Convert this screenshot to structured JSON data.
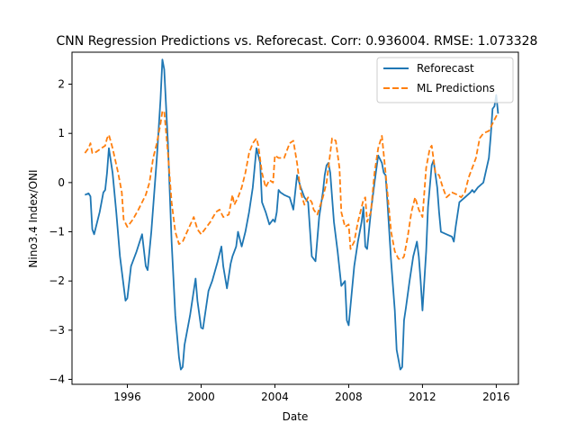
{
  "chart_data": {
    "type": "line",
    "title": "CNN Regression Predictions vs. Reforecast. Corr: 0.936004. RMSE: 1.073328",
    "xlabel": "Date",
    "ylabel": "Nino3.4 Index/ONI",
    "xlim": [
      1993.0,
      2017.2
    ],
    "ylim": [
      -4.1,
      2.65
    ],
    "x_ticks": [
      1996,
      2000,
      2004,
      2008,
      2012,
      2016
    ],
    "x_tick_labels": [
      "1996",
      "2000",
      "2004",
      "2008",
      "2012",
      "2016"
    ],
    "y_ticks": [
      -4,
      -3,
      -2,
      -1,
      0,
      1,
      2
    ],
    "y_tick_labels": [
      "−4",
      "−3",
      "−2",
      "−1",
      "0",
      "1",
      "2"
    ],
    "grid": false,
    "legend_position": "top-right",
    "series": [
      {
        "name": "Reforecast",
        "color": "#1f77b4",
        "dash": "solid",
        "x": [
          1993.7,
          1993.9,
          1994.0,
          1994.1,
          1994.2,
          1994.5,
          1994.7,
          1994.8,
          1994.9,
          1995.0,
          1995.2,
          1995.4,
          1995.6,
          1995.8,
          1995.9,
          1996.0,
          1996.2,
          1996.5,
          1996.8,
          1997.0,
          1997.1,
          1997.3,
          1997.6,
          1997.8,
          1997.9,
          1998.0,
          1998.2,
          1998.4,
          1998.6,
          1998.8,
          1998.9,
          1999.0,
          1999.1,
          1999.2,
          1999.4,
          1999.6,
          1999.7,
          1999.8,
          2000.0,
          2000.1,
          2000.4,
          2000.6,
          2000.9,
          2001.0,
          2001.1,
          2001.2,
          2001.4,
          2001.6,
          2001.7,
          2001.8,
          2001.9,
          2002.0,
          2002.2,
          2002.4,
          2002.6,
          2002.8,
          2002.9,
          2003.0,
          2003.2,
          2003.3,
          2003.5,
          2003.7,
          2003.9,
          2004.0,
          2004.1,
          2004.2,
          2004.3,
          2004.5,
          2004.8,
          2005.0,
          2005.2,
          2005.4,
          2005.6,
          2005.8,
          2006.0,
          2006.2,
          2006.4,
          2006.6,
          2006.7,
          2006.8,
          2006.9,
          2007.0,
          2007.1,
          2007.2,
          2007.4,
          2007.6,
          2007.8,
          2007.9,
          2008.0,
          2008.1,
          2008.3,
          2008.5,
          2008.7,
          2008.8,
          2008.9,
          2009.0,
          2009.2,
          2009.4,
          2009.6,
          2009.8,
          2009.9,
          2010.0,
          2010.1,
          2010.3,
          2010.5,
          2010.6,
          2010.8,
          2010.9,
          2011.0,
          2011.1,
          2011.3,
          2011.5,
          2011.7,
          2011.8,
          2011.9,
          2012.0,
          2012.2,
          2012.3,
          2012.5,
          2012.6,
          2012.8,
          2012.9,
          2013.0,
          2013.3,
          2013.6,
          2013.7,
          2013.8,
          2014.0,
          2014.3,
          2014.6,
          2014.7,
          2014.8,
          2015.0,
          2015.3,
          2015.6,
          2015.7,
          2015.8,
          2015.9,
          2016.0,
          2016.1
        ],
        "y": [
          -0.25,
          -0.22,
          -0.28,
          -0.95,
          -1.05,
          -0.6,
          -0.2,
          -0.15,
          0.2,
          0.7,
          0.2,
          -0.6,
          -1.5,
          -2.1,
          -2.4,
          -2.35,
          -1.7,
          -1.4,
          -1.05,
          -1.7,
          -1.78,
          -1.0,
          0.5,
          1.7,
          2.5,
          2.3,
          0.8,
          -1.2,
          -2.7,
          -3.55,
          -3.8,
          -3.75,
          -3.3,
          -3.1,
          -2.7,
          -2.2,
          -1.95,
          -2.4,
          -2.95,
          -2.97,
          -2.2,
          -2.0,
          -1.6,
          -1.45,
          -1.3,
          -1.7,
          -2.15,
          -1.65,
          -1.5,
          -1.4,
          -1.3,
          -1.0,
          -1.3,
          -1.0,
          -0.6,
          -0.1,
          0.3,
          0.7,
          0.4,
          -0.4,
          -0.6,
          -0.85,
          -0.75,
          -0.8,
          -0.6,
          -0.15,
          -0.2,
          -0.25,
          -0.3,
          -0.55,
          0.15,
          -0.1,
          -0.3,
          -0.4,
          -1.5,
          -1.6,
          -0.7,
          -0.2,
          0.15,
          0.35,
          0.4,
          0.2,
          -0.3,
          -0.8,
          -1.4,
          -2.1,
          -2.0,
          -2.8,
          -2.9,
          -2.5,
          -1.7,
          -1.2,
          -0.8,
          -0.5,
          -1.3,
          -1.35,
          -0.6,
          0.0,
          0.55,
          0.4,
          0.2,
          0.15,
          -0.4,
          -1.6,
          -2.6,
          -3.4,
          -3.8,
          -3.75,
          -2.8,
          -2.55,
          -2.0,
          -1.5,
          -1.2,
          -1.5,
          -2.0,
          -2.6,
          -1.4,
          -0.5,
          0.35,
          0.45,
          -0.1,
          -0.6,
          -1.0,
          -1.05,
          -1.1,
          -1.2,
          -0.9,
          -0.4,
          -0.3,
          -0.2,
          -0.15,
          -0.2,
          -0.1,
          0.0,
          0.5,
          0.95,
          1.5,
          1.55,
          1.78,
          1.4
        ]
      },
      {
        "name": "ML Predictions",
        "color": "#ff7f0e",
        "dash": "dashed",
        "x": [
          1993.7,
          1993.9,
          1994.0,
          1994.1,
          1994.3,
          1994.6,
          1994.8,
          1994.9,
          1995.0,
          1995.2,
          1995.5,
          1995.7,
          1995.8,
          1996.0,
          1996.3,
          1996.6,
          1996.8,
          1997.0,
          1997.2,
          1997.4,
          1997.6,
          1997.8,
          1997.9,
          1998.0,
          1998.2,
          1998.4,
          1998.6,
          1998.8,
          1999.0,
          1999.3,
          1999.6,
          1999.8,
          2000.0,
          2000.2,
          2000.5,
          2000.8,
          2001.0,
          2001.2,
          2001.5,
          2001.7,
          2001.8,
          2002.0,
          2002.2,
          2002.4,
          2002.6,
          2002.8,
          2003.0,
          2003.1,
          2003.3,
          2003.5,
          2003.7,
          2003.9,
          2004.0,
          2004.2,
          2004.5,
          2004.8,
          2005.0,
          2005.2,
          2005.4,
          2005.6,
          2005.8,
          2006.0,
          2006.1,
          2006.3,
          2006.6,
          2006.8,
          2007.0,
          2007.1,
          2007.3,
          2007.5,
          2007.6,
          2007.8,
          2008.0,
          2008.1,
          2008.3,
          2008.5,
          2008.7,
          2008.8,
          2008.9,
          2009.0,
          2009.2,
          2009.4,
          2009.6,
          2009.8,
          2010.0,
          2010.1,
          2010.3,
          2010.5,
          2010.7,
          2010.9,
          2011.0,
          2011.2,
          2011.4,
          2011.6,
          2011.8,
          2012.0,
          2012.2,
          2012.4,
          2012.5,
          2012.7,
          2012.9,
          2013.1,
          2013.3,
          2013.6,
          2013.9,
          2014.1,
          2014.3,
          2014.5,
          2014.7,
          2014.9,
          2015.1,
          2015.3,
          2015.6,
          2015.8,
          2016.0,
          2016.1
        ],
        "y": [
          0.6,
          0.7,
          0.8,
          0.6,
          0.62,
          0.7,
          0.75,
          0.9,
          0.97,
          0.7,
          0.2,
          -0.2,
          -0.75,
          -0.9,
          -0.75,
          -0.55,
          -0.4,
          -0.25,
          0.0,
          0.5,
          0.8,
          1.2,
          1.45,
          1.45,
          0.6,
          -0.4,
          -1.0,
          -1.25,
          -1.2,
          -0.95,
          -0.7,
          -0.95,
          -1.05,
          -0.95,
          -0.8,
          -0.6,
          -0.55,
          -0.7,
          -0.65,
          -0.25,
          -0.45,
          -0.3,
          -0.1,
          0.2,
          0.6,
          0.8,
          0.9,
          0.75,
          0.2,
          -0.1,
          0.05,
          0.0,
          0.55,
          0.5,
          0.5,
          0.8,
          0.85,
          0.4,
          -0.2,
          -0.45,
          -0.3,
          -0.4,
          -0.55,
          -0.65,
          -0.3,
          0.0,
          0.6,
          0.9,
          0.85,
          0.3,
          -0.6,
          -0.9,
          -0.85,
          -1.35,
          -1.2,
          -0.8,
          -0.5,
          -0.35,
          -0.3,
          -0.8,
          -0.6,
          0.2,
          0.7,
          0.95,
          0.2,
          -0.2,
          -1.0,
          -1.4,
          -1.55,
          -1.55,
          -1.5,
          -1.1,
          -0.6,
          -0.3,
          -0.55,
          -0.7,
          0.3,
          0.7,
          0.75,
          0.2,
          0.15,
          -0.1,
          -0.3,
          -0.2,
          -0.25,
          -0.3,
          -0.2,
          0.1,
          0.3,
          0.5,
          0.9,
          1.0,
          1.05,
          1.2,
          1.35,
          1.4
        ]
      }
    ]
  }
}
